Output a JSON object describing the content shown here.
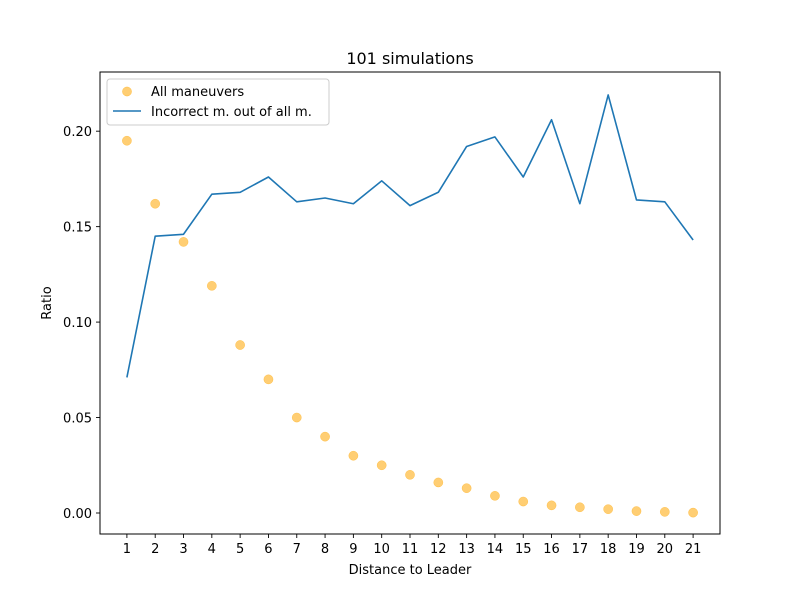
{
  "chart_data": {
    "type": "line",
    "title": "101 simulations",
    "xlabel": "Distance to Leader",
    "ylabel": "Ratio",
    "x": [
      1,
      2,
      3,
      4,
      5,
      6,
      7,
      8,
      9,
      10,
      11,
      12,
      13,
      14,
      15,
      16,
      17,
      18,
      19,
      20,
      21
    ],
    "xlim": [
      0.05,
      21.95
    ],
    "ylim": [
      -0.011,
      0.231
    ],
    "yticks": [
      0.0,
      0.05,
      0.1,
      0.15,
      0.2
    ],
    "ytick_labels": [
      "0.00",
      "0.05",
      "0.10",
      "0.15",
      "0.20"
    ],
    "xtick_labels": [
      "1",
      "2",
      "3",
      "4",
      "5",
      "6",
      "7",
      "8",
      "9",
      "10",
      "11",
      "12",
      "13",
      "14",
      "15",
      "16",
      "17",
      "18",
      "19",
      "20",
      "21"
    ],
    "grid": false,
    "legend_position": "top-left",
    "series": [
      {
        "name": "All maneuvers",
        "kind": "scatter",
        "color": "#ffa500",
        "values": [
          0.195,
          0.162,
          0.142,
          0.119,
          0.088,
          0.07,
          0.05,
          0.04,
          0.03,
          0.025,
          0.02,
          0.016,
          0.013,
          0.009,
          0.006,
          0.004,
          0.003,
          0.002,
          0.001,
          0.0006,
          0.0002
        ]
      },
      {
        "name": "Incorrect m. out of all m.",
        "kind": "line",
        "color": "#1f77b4",
        "values": [
          0.071,
          0.145,
          0.146,
          0.167,
          0.168,
          0.176,
          0.163,
          0.165,
          0.162,
          0.174,
          0.161,
          0.168,
          0.192,
          0.197,
          0.176,
          0.206,
          0.162,
          0.219,
          0.164,
          0.163,
          0.143
        ]
      }
    ]
  }
}
